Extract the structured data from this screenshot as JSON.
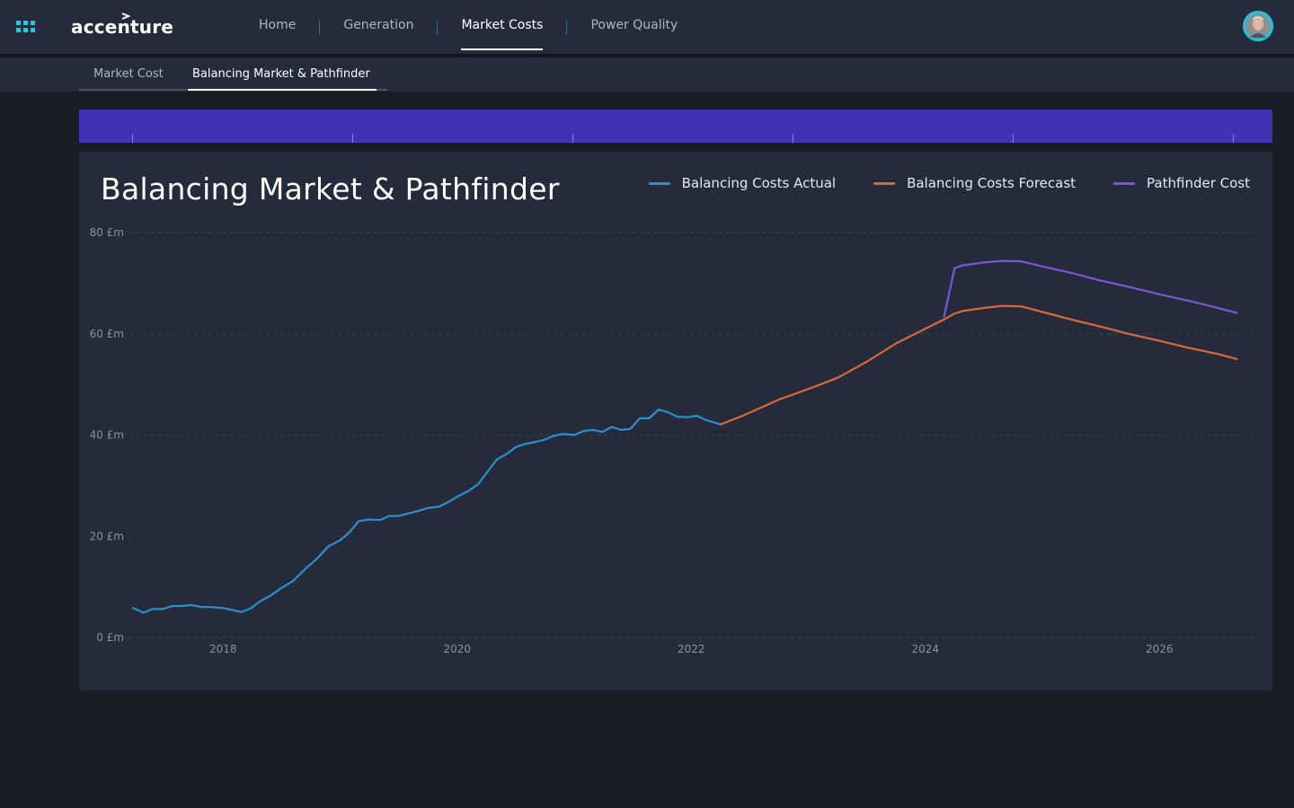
{
  "topbar": {
    "apps_icon": "grid-apps-icon",
    "logo_text": "accenture",
    "nav": [
      {
        "label": "Home",
        "active": false
      },
      {
        "label": "Generation",
        "active": false
      },
      {
        "label": "Market Costs",
        "active": true
      },
      {
        "label": "Power Quality",
        "active": false
      }
    ],
    "avatar_icon": "user-avatar-icon"
  },
  "subtabs": [
    {
      "label": "Market Cost",
      "active": false
    },
    {
      "label": "Balancing Market & Pathfinder",
      "active": true
    }
  ],
  "colors": {
    "band": "#4331b4",
    "actual": "#2b8fcf",
    "forecast": "#d9683a",
    "pathfinder": "#7a56d6"
  },
  "chart_data": {
    "type": "line",
    "title": "Balancing Market & Pathfinder",
    "xlabel": "",
    "ylabel": "",
    "ylim": [
      0,
      80
    ],
    "yticks": [
      "0 £m",
      "20 £m",
      "40 £m",
      "60 £m",
      "80 £m"
    ],
    "xticks": [
      "2018",
      "2020",
      "2022",
      "2024",
      "2026"
    ],
    "xlim": [
      2017.23,
      2026.75
    ],
    "grid": true,
    "legend_position": "top-right",
    "series": [
      {
        "name": "Balancing Costs Actual",
        "color": "#2b8fcf",
        "points": [
          [
            2017.23,
            5.8
          ],
          [
            2017.32,
            4.9
          ],
          [
            2017.4,
            5.6
          ],
          [
            2017.48,
            5.6
          ],
          [
            2017.57,
            6.2
          ],
          [
            2017.65,
            6.2
          ],
          [
            2017.73,
            6.4
          ],
          [
            2017.82,
            6.0
          ],
          [
            2017.9,
            6.0
          ],
          [
            2018.0,
            5.8
          ],
          [
            2018.08,
            5.4
          ],
          [
            2018.16,
            5.0
          ],
          [
            2018.24,
            5.8
          ],
          [
            2018.32,
            7.2
          ],
          [
            2018.4,
            8.2
          ],
          [
            2018.5,
            9.8
          ],
          [
            2018.6,
            11.2
          ],
          [
            2018.7,
            13.5
          ],
          [
            2018.8,
            15.5
          ],
          [
            2018.9,
            18.0
          ],
          [
            2019.0,
            19.2
          ],
          [
            2019.08,
            20.8
          ],
          [
            2019.16,
            23.0
          ],
          [
            2019.25,
            23.3
          ],
          [
            2019.34,
            23.2
          ],
          [
            2019.42,
            24.0
          ],
          [
            2019.5,
            24.0
          ],
          [
            2019.58,
            24.5
          ],
          [
            2019.67,
            25.0
          ],
          [
            2019.75,
            25.6
          ],
          [
            2019.84,
            25.8
          ],
          [
            2019.92,
            26.7
          ],
          [
            2020.0,
            27.8
          ],
          [
            2020.1,
            29.0
          ],
          [
            2020.18,
            30.3
          ],
          [
            2020.26,
            32.8
          ],
          [
            2020.34,
            35.2
          ],
          [
            2020.42,
            36.2
          ],
          [
            2020.5,
            37.6
          ],
          [
            2020.58,
            38.2
          ],
          [
            2020.66,
            38.6
          ],
          [
            2020.74,
            39.0
          ],
          [
            2020.82,
            39.8
          ],
          [
            2020.9,
            40.2
          ],
          [
            2021.0,
            40.0
          ],
          [
            2021.08,
            40.8
          ],
          [
            2021.16,
            41.0
          ],
          [
            2021.24,
            40.6
          ],
          [
            2021.32,
            41.6
          ],
          [
            2021.4,
            41.0
          ],
          [
            2021.48,
            41.2
          ],
          [
            2021.56,
            43.3
          ],
          [
            2021.64,
            43.3
          ],
          [
            2021.72,
            45.0
          ],
          [
            2021.8,
            44.5
          ],
          [
            2021.88,
            43.6
          ],
          [
            2021.96,
            43.5
          ],
          [
            2022.05,
            43.8
          ],
          [
            2022.12,
            43.0
          ],
          [
            2022.25,
            42.1
          ]
        ]
      },
      {
        "name": "Balancing Costs Forecast",
        "color": "#d9683a",
        "points": [
          [
            2022.25,
            42.1
          ],
          [
            2022.45,
            43.9
          ],
          [
            2022.75,
            47.0
          ],
          [
            2023.05,
            49.5
          ],
          [
            2023.25,
            51.3
          ],
          [
            2023.5,
            54.5
          ],
          [
            2023.75,
            58.1
          ],
          [
            2024.0,
            61.0
          ],
          [
            2024.15,
            62.7
          ],
          [
            2024.25,
            64.0
          ],
          [
            2024.32,
            64.5
          ],
          [
            2024.5,
            65.1
          ],
          [
            2024.66,
            65.5
          ],
          [
            2024.82,
            65.4
          ],
          [
            2025.0,
            64.3
          ],
          [
            2025.25,
            62.8
          ],
          [
            2025.5,
            61.4
          ],
          [
            2025.75,
            59.9
          ],
          [
            2026.0,
            58.6
          ],
          [
            2026.25,
            57.2
          ],
          [
            2026.5,
            56.0
          ],
          [
            2026.66,
            55.0
          ]
        ]
      },
      {
        "name": "Pathfinder Cost",
        "color": "#7a56d6",
        "points": [
          [
            2024.16,
            63.4
          ],
          [
            2024.25,
            73.0
          ],
          [
            2024.32,
            73.5
          ],
          [
            2024.5,
            74.1
          ],
          [
            2024.66,
            74.4
          ],
          [
            2024.82,
            74.3
          ],
          [
            2025.0,
            73.3
          ],
          [
            2025.25,
            72.0
          ],
          [
            2025.5,
            70.5
          ],
          [
            2025.75,
            69.2
          ],
          [
            2026.0,
            67.8
          ],
          [
            2026.25,
            66.5
          ],
          [
            2026.5,
            65.1
          ],
          [
            2026.66,
            64.1
          ]
        ]
      }
    ]
  }
}
